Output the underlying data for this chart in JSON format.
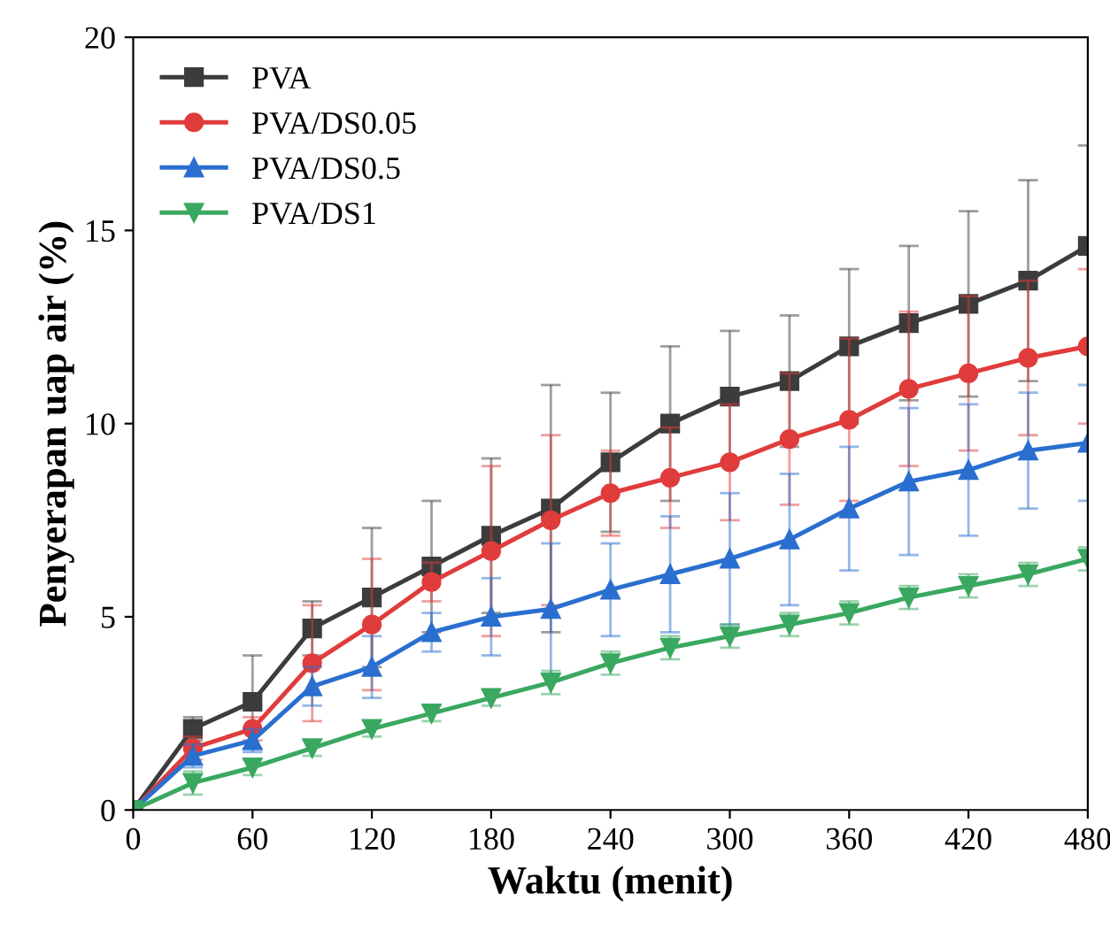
{
  "chart_data": {
    "type": "line",
    "xlabel": "Waktu (menit)",
    "ylabel": "Penyerapan uap air (%)",
    "x": [
      0,
      30,
      60,
      90,
      120,
      150,
      180,
      210,
      240,
      270,
      300,
      330,
      360,
      390,
      420,
      450,
      480
    ],
    "series": [
      {
        "name": "PVA",
        "color": "#3c3c3c",
        "marker": "square",
        "values": [
          0,
          2.1,
          2.8,
          4.7,
          5.5,
          6.3,
          7.1,
          7.8,
          9.0,
          10.0,
          10.7,
          11.1,
          12.0,
          12.6,
          13.1,
          13.7,
          14.6
        ],
        "errors": [
          0,
          0.3,
          1.2,
          0.7,
          1.8,
          1.7,
          2.0,
          3.2,
          1.8,
          2.0,
          1.7,
          1.7,
          2.0,
          2.0,
          2.4,
          2.6,
          2.6
        ]
      },
      {
        "name": "PVA/DS0.05",
        "color": "#e03c3c",
        "marker": "circle",
        "values": [
          0,
          1.6,
          2.1,
          3.8,
          4.8,
          5.9,
          6.7,
          7.5,
          8.2,
          8.6,
          9.0,
          9.6,
          10.1,
          10.9,
          11.3,
          11.7,
          12.0
        ],
        "errors": [
          0,
          0.3,
          0.3,
          1.5,
          1.7,
          0.5,
          2.2,
          2.2,
          1.1,
          1.3,
          1.5,
          1.7,
          2.1,
          2.0,
          2.0,
          2.0,
          2.0
        ]
      },
      {
        "name": "PVA/DS0.5",
        "color": "#2a6fd0",
        "marker": "triangle",
        "values": [
          0,
          1.4,
          1.8,
          3.2,
          3.7,
          4.6,
          5.0,
          5.2,
          5.7,
          6.1,
          6.5,
          7.0,
          7.8,
          8.5,
          8.8,
          9.3,
          9.5
        ],
        "errors": [
          0,
          0.3,
          0.3,
          0.5,
          0.8,
          0.5,
          1.0,
          1.7,
          1.2,
          1.5,
          1.7,
          1.7,
          1.6,
          1.9,
          1.7,
          1.5,
          1.5
        ]
      },
      {
        "name": "PVA/DS1",
        "color": "#3aa860",
        "marker": "triangle_down",
        "values": [
          0,
          0.7,
          1.1,
          1.6,
          2.1,
          2.5,
          2.9,
          3.3,
          3.8,
          4.2,
          4.5,
          4.8,
          5.1,
          5.5,
          5.8,
          6.1,
          6.5
        ],
        "errors": [
          0,
          0.3,
          0.2,
          0.2,
          0.2,
          0.2,
          0.2,
          0.3,
          0.3,
          0.3,
          0.3,
          0.3,
          0.3,
          0.3,
          0.3,
          0.3,
          0.3
        ]
      }
    ],
    "xlim": [
      0,
      480
    ],
    "xticks": [
      0,
      60,
      120,
      180,
      240,
      300,
      360,
      420,
      480
    ],
    "ylim": [
      0,
      20
    ],
    "yticks": [
      0,
      5,
      10,
      15,
      20
    ],
    "grid": false,
    "legend": "top left",
    "line_style": "solid"
  }
}
